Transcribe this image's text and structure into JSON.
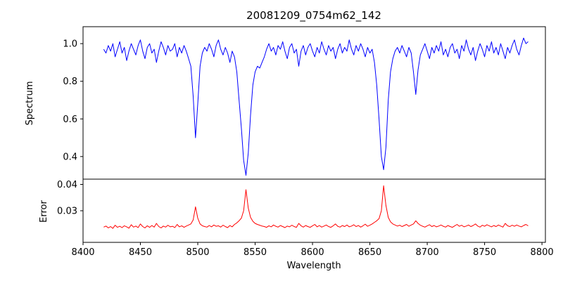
{
  "figure": {
    "title": "20081209_0754m62_142",
    "xlabel": "Wavelength",
    "background_color": "#ffffff",
    "axis_color": "#000000"
  },
  "chart_data": [
    {
      "type": "line",
      "panel": "spectrum",
      "title": "20081209_0754m62_142",
      "ylabel": "Spectrum",
      "line_color": "#0000ff",
      "grid": false,
      "legend": false,
      "xlim": [
        8400,
        8803
      ],
      "ylim": [
        0.28,
        1.09
      ],
      "ytick_values": [
        0.4,
        0.6,
        0.8,
        1.0
      ],
      "ytick_labels": [
        "0.4",
        "0.6",
        "0.8",
        "1.0"
      ],
      "absorption_line_centers": [
        8498,
        8542,
        8662,
        8690
      ],
      "x_start": 8418,
      "x_step": 2,
      "values": [
        0.97,
        0.95,
        0.99,
        0.96,
        1.0,
        0.93,
        0.97,
        1.01,
        0.95,
        0.98,
        0.91,
        0.96,
        1.0,
        0.97,
        0.94,
        0.99,
        1.02,
        0.96,
        0.92,
        0.98,
        1.0,
        0.95,
        0.97,
        0.9,
        0.96,
        1.01,
        0.98,
        0.94,
        0.99,
        0.96,
        0.97,
        1.0,
        0.93,
        0.98,
        0.95,
        0.99,
        0.96,
        0.92,
        0.88,
        0.72,
        0.5,
        0.68,
        0.88,
        0.95,
        0.98,
        0.96,
        1.0,
        0.97,
        0.93,
        0.99,
        1.02,
        0.97,
        0.94,
        0.98,
        0.95,
        0.9,
        0.96,
        0.93,
        0.85,
        0.7,
        0.55,
        0.38,
        0.3,
        0.42,
        0.62,
        0.78,
        0.85,
        0.88,
        0.87,
        0.9,
        0.93,
        0.97,
        1.0,
        0.96,
        0.98,
        0.94,
        0.99,
        0.97,
        1.01,
        0.96,
        0.92,
        0.98,
        1.0,
        0.95,
        0.97,
        0.88,
        0.96,
        0.99,
        0.94,
        0.98,
        1.0,
        0.96,
        0.93,
        0.98,
        0.95,
        1.01,
        0.97,
        0.94,
        0.99,
        0.96,
        0.98,
        0.92,
        0.97,
        1.0,
        0.95,
        0.98,
        0.96,
        1.02,
        0.97,
        0.94,
        0.99,
        0.96,
        1.0,
        0.97,
        0.93,
        0.98,
        0.95,
        0.97,
        0.9,
        0.78,
        0.6,
        0.4,
        0.33,
        0.45,
        0.7,
        0.85,
        0.92,
        0.96,
        0.98,
        0.95,
        0.99,
        0.96,
        0.93,
        0.98,
        0.95,
        0.85,
        0.73,
        0.86,
        0.94,
        0.97,
        1.0,
        0.96,
        0.92,
        0.98,
        0.95,
        0.99,
        0.96,
        1.01,
        0.94,
        0.97,
        0.93,
        0.98,
        1.0,
        0.95,
        0.97,
        0.92,
        0.99,
        0.96,
        1.02,
        0.97,
        0.94,
        0.98,
        0.91,
        0.96,
        1.0,
        0.97,
        0.93,
        0.99,
        0.96,
        1.01,
        0.95,
        0.98,
        0.94,
        1.0,
        0.96,
        0.92,
        0.98,
        0.95,
        0.99,
        1.02,
        0.97,
        0.94,
        0.99,
        1.03,
        1.0,
        1.01
      ]
    },
    {
      "type": "line",
      "panel": "error",
      "ylabel": "Error",
      "xlabel": "Wavelength",
      "line_color": "#ff0000",
      "grid": false,
      "legend": false,
      "xlim": [
        8400,
        8803
      ],
      "ylim": [
        0.018,
        0.042
      ],
      "ytick_values": [
        0.03,
        0.04
      ],
      "ytick_labels": [
        "0.03",
        "0.04"
      ],
      "xtick_values": [
        8400,
        8450,
        8500,
        8550,
        8600,
        8650,
        8700,
        8750,
        8800
      ],
      "xtick_labels": [
        "8400",
        "8450",
        "8500",
        "8550",
        "8600",
        "8650",
        "8700",
        "8750",
        "8800"
      ],
      "peak_centers": [
        8498,
        8542,
        8662
      ],
      "x_start": 8418,
      "x_step": 2,
      "values": [
        0.0238,
        0.0242,
        0.0235,
        0.024,
        0.0233,
        0.0245,
        0.0237,
        0.0241,
        0.0236,
        0.0243,
        0.0239,
        0.0234,
        0.0247,
        0.0238,
        0.0242,
        0.0236,
        0.025,
        0.024,
        0.0235,
        0.0243,
        0.0237,
        0.0244,
        0.0238,
        0.0252,
        0.024,
        0.0235,
        0.0242,
        0.0238,
        0.0245,
        0.0239,
        0.0241,
        0.0236,
        0.0248,
        0.0239,
        0.0243,
        0.0237,
        0.0242,
        0.0246,
        0.025,
        0.0265,
        0.0315,
        0.0272,
        0.025,
        0.0243,
        0.024,
        0.0238,
        0.0244,
        0.0239,
        0.0246,
        0.0241,
        0.0243,
        0.0238,
        0.0245,
        0.024,
        0.0236,
        0.0244,
        0.0239,
        0.0248,
        0.0254,
        0.0262,
        0.0272,
        0.03,
        0.038,
        0.031,
        0.0275,
        0.026,
        0.0252,
        0.0248,
        0.0245,
        0.0242,
        0.024,
        0.0237,
        0.0243,
        0.0239,
        0.0246,
        0.0241,
        0.0238,
        0.0244,
        0.024,
        0.0236,
        0.0242,
        0.0239,
        0.0245,
        0.024,
        0.0237,
        0.0252,
        0.0243,
        0.0238,
        0.0244,
        0.024,
        0.0237,
        0.0243,
        0.0248,
        0.0239,
        0.0244,
        0.0238,
        0.0242,
        0.0246,
        0.024,
        0.0237,
        0.0243,
        0.025,
        0.0241,
        0.0238,
        0.0244,
        0.024,
        0.0246,
        0.0239,
        0.0242,
        0.0247,
        0.024,
        0.0244,
        0.0238,
        0.0243,
        0.0249,
        0.0241,
        0.0245,
        0.025,
        0.0256,
        0.0262,
        0.027,
        0.03,
        0.0395,
        0.032,
        0.0275,
        0.0258,
        0.025,
        0.0246,
        0.0242,
        0.0245,
        0.024,
        0.0244,
        0.0248,
        0.0241,
        0.0246,
        0.025,
        0.0262,
        0.0252,
        0.0245,
        0.0241,
        0.0238,
        0.0243,
        0.0247,
        0.024,
        0.0244,
        0.0239,
        0.0242,
        0.0246,
        0.0241,
        0.0238,
        0.0244,
        0.024,
        0.0237,
        0.0243,
        0.0248,
        0.0241,
        0.0245,
        0.0239,
        0.0242,
        0.0246,
        0.024,
        0.0244,
        0.025,
        0.0242,
        0.0238,
        0.0245,
        0.0241,
        0.0247,
        0.0243,
        0.0239,
        0.0244,
        0.024,
        0.0246,
        0.0242,
        0.0238,
        0.0252,
        0.0243,
        0.024,
        0.0245,
        0.0241,
        0.0246,
        0.0242,
        0.0239,
        0.0244,
        0.0248,
        0.0243
      ]
    }
  ]
}
